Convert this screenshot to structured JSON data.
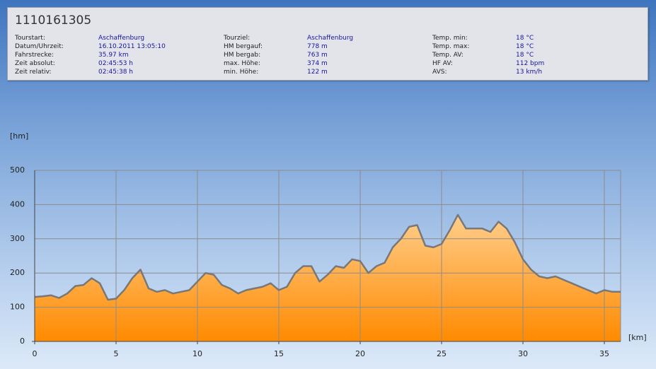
{
  "header": {
    "title": "1110161305",
    "columns": [
      [
        {
          "label": "Tourstart:",
          "value": "Aschaffenburg"
        },
        {
          "label": "Datum/Uhrzeit:",
          "value": "16.10.2011 13:05:10"
        },
        {
          "label": "Fahrstrecke:",
          "value": "35.97 km"
        },
        {
          "label": "Zeit absolut:",
          "value": "02:45:53 h"
        },
        {
          "label": "Zeit relativ:",
          "value": "02:45:38 h"
        }
      ],
      [
        {
          "label": "Tourziel:",
          "value": "Aschaffenburg"
        },
        {
          "label": "HM bergauf:",
          "value": "778 m"
        },
        {
          "label": "HM bergab:",
          "value": "763 m"
        },
        {
          "label": "max. Höhe:",
          "value": "374 m"
        },
        {
          "label": "min. Höhe:",
          "value": "122 m"
        }
      ],
      [
        {
          "label": "Temp. min:",
          "value": "18 °C"
        },
        {
          "label": "Temp. max:",
          "value": "18 °C"
        },
        {
          "label": "Temp. AV:",
          "value": "18 °C"
        },
        {
          "label": "HF AV:",
          "value": "112 bpm"
        },
        {
          "label": "AVS:",
          "value": "13 km/h"
        }
      ]
    ]
  },
  "chart_data": {
    "type": "area",
    "ylabel": "[hm]",
    "xlabel": "[km]",
    "x": [
      0,
      0.5,
      1,
      1.5,
      2,
      2.5,
      3,
      3.5,
      4,
      4.5,
      5,
      5.5,
      6,
      6.5,
      7,
      7.5,
      8,
      8.5,
      9,
      9.5,
      10,
      10.5,
      11,
      11.5,
      12,
      12.5,
      13,
      13.5,
      14,
      14.5,
      15,
      15.5,
      16,
      16.5,
      17,
      17.5,
      18,
      18.5,
      19,
      19.5,
      20,
      20.5,
      21,
      21.5,
      22,
      22.5,
      23,
      23.5,
      24,
      24.5,
      25,
      25.5,
      26,
      26.5,
      27,
      27.5,
      28,
      28.5,
      29,
      29.5,
      30,
      30.5,
      31,
      31.5,
      32,
      32.5,
      33,
      33.5,
      34,
      34.5,
      35,
      35.5,
      36
    ],
    "values": [
      130,
      132,
      135,
      127,
      140,
      162,
      165,
      185,
      170,
      122,
      125,
      150,
      185,
      210,
      155,
      145,
      150,
      140,
      145,
      150,
      175,
      200,
      195,
      165,
      155,
      140,
      150,
      155,
      160,
      170,
      150,
      160,
      200,
      220,
      220,
      175,
      195,
      220,
      215,
      240,
      235,
      200,
      220,
      230,
      275,
      300,
      335,
      340,
      280,
      275,
      285,
      325,
      370,
      330,
      330,
      330,
      320,
      350,
      330,
      290,
      240,
      210,
      190,
      185,
      190,
      180,
      170,
      160,
      150,
      140,
      150,
      145,
      145
    ],
    "xlim": [
      0,
      36
    ],
    "ylim": [
      0,
      500
    ],
    "xticks": [
      0,
      5,
      10,
      15,
      20,
      25,
      30,
      35
    ],
    "yticks": [
      0,
      100,
      200,
      300,
      400,
      500
    ],
    "grid": true,
    "line_color": "#787878",
    "fill_top": "#ffe6bd",
    "fill_bottom": "#ff8a00"
  }
}
